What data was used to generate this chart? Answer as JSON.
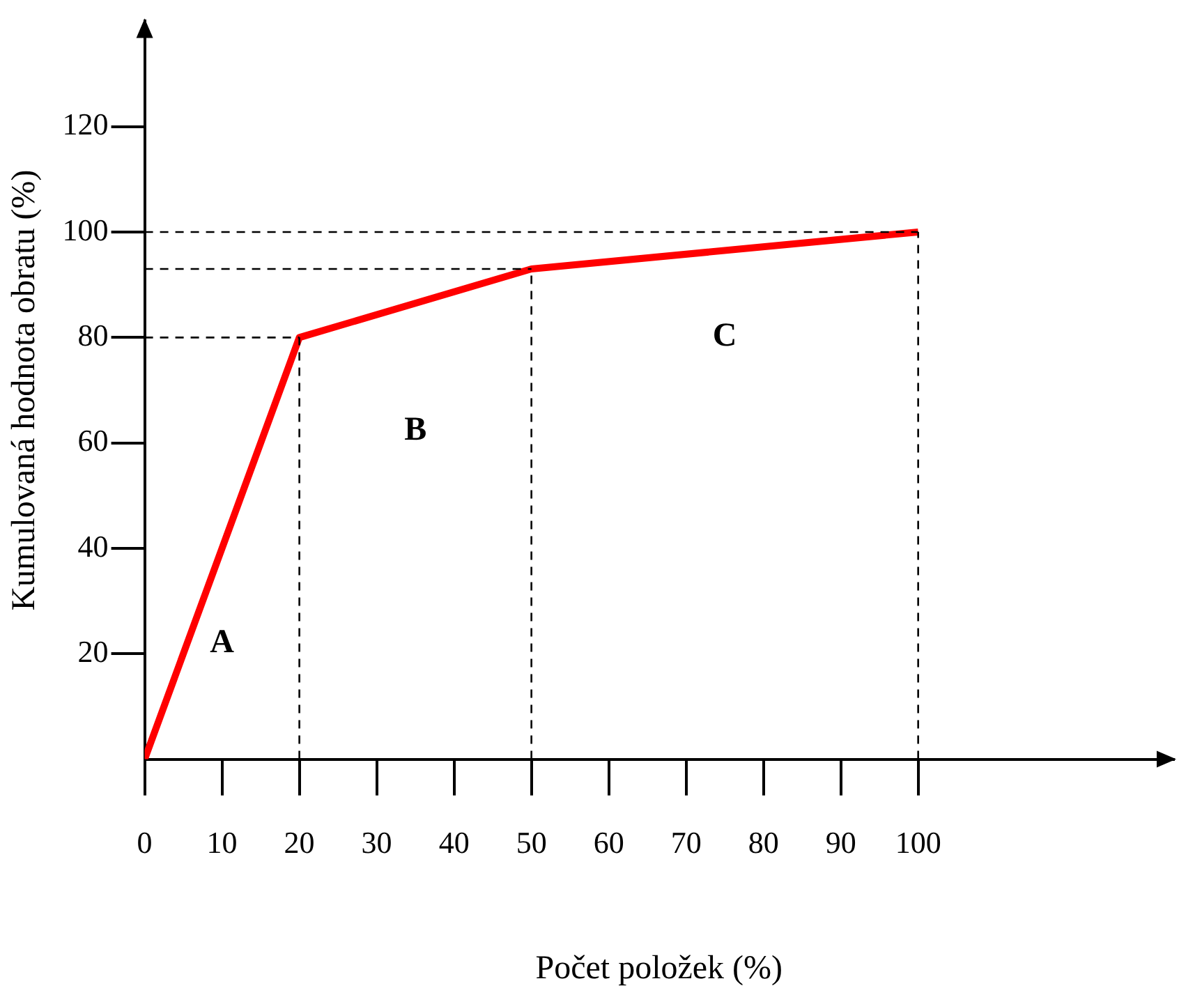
{
  "chart_data": {
    "type": "line",
    "xlabel": "Počet položek (%)",
    "ylabel": "Kumulovaná hodnota obratu (%)",
    "x": [
      0,
      20,
      50,
      100
    ],
    "series": [
      {
        "color": "#ff0000",
        "values": [
          0,
          80,
          93,
          100
        ]
      }
    ],
    "xlim": [
      0,
      133
    ],
    "ylim": [
      0,
      140
    ],
    "xticks": [
      0,
      10,
      20,
      30,
      40,
      50,
      60,
      70,
      80,
      90,
      100
    ],
    "yticks": [
      20,
      40,
      60,
      80,
      100,
      120
    ],
    "marker": "none",
    "line_style": "solid",
    "ref_lines": [
      {
        "axis": "x",
        "value": 20,
        "line_style": "dashed",
        "color": "#000000"
      },
      {
        "axis": "x",
        "value": 50,
        "line_style": "dashed",
        "color": "#000000"
      },
      {
        "axis": "x",
        "value": 100,
        "line_style": "dashed",
        "color": "#000000"
      },
      {
        "axis": "y",
        "value": 80,
        "line_style": "dashed",
        "color": "#000000"
      },
      {
        "axis": "y",
        "value": 93,
        "line_style": "dashed",
        "color": "#000000"
      },
      {
        "axis": "y",
        "value": 100,
        "line_style": "dashed",
        "color": "#000000"
      }
    ],
    "annotations": [
      "A",
      "B",
      "C"
    ]
  }
}
